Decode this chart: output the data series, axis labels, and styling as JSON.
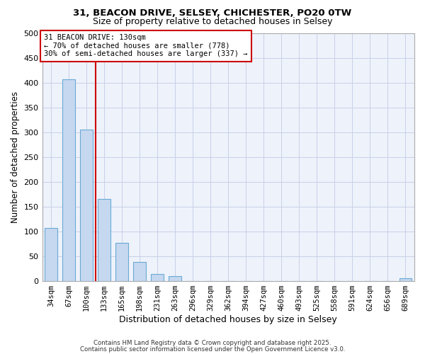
{
  "title1": "31, BEACON DRIVE, SELSEY, CHICHESTER, PO20 0TW",
  "title2": "Size of property relative to detached houses in Selsey",
  "xlabel": "Distribution of detached houses by size in Selsey",
  "ylabel": "Number of detached properties",
  "bar_labels": [
    "34sqm",
    "67sqm",
    "100sqm",
    "133sqm",
    "165sqm",
    "198sqm",
    "231sqm",
    "263sqm",
    "296sqm",
    "329sqm",
    "362sqm",
    "394sqm",
    "427sqm",
    "460sqm",
    "493sqm",
    "525sqm",
    "558sqm",
    "591sqm",
    "624sqm",
    "656sqm",
    "689sqm"
  ],
  "bar_values": [
    107,
    406,
    305,
    165,
    77,
    38,
    13,
    10,
    0,
    0,
    0,
    0,
    0,
    0,
    0,
    0,
    0,
    0,
    0,
    0,
    5
  ],
  "bar_color": "#c5d8f0",
  "bar_edge_color": "#6aaad4",
  "vline_color": "#cc0000",
  "ylim": [
    0,
    500
  ],
  "yticks": [
    0,
    50,
    100,
    150,
    200,
    250,
    300,
    350,
    400,
    450,
    500
  ],
  "annotation_title": "31 BEACON DRIVE: 130sqm",
  "annotation_line1": "← 70% of detached houses are smaller (778)",
  "annotation_line2": "30% of semi-detached houses are larger (337) →",
  "annotation_box_color": "#ffffff",
  "annotation_box_edge": "#cc0000",
  "footer1": "Contains HM Land Registry data © Crown copyright and database right 2025.",
  "footer2": "Contains public sector information licensed under the Open Government Licence v3.0.",
  "bg_color": "#ffffff",
  "plot_bg_color": "#eef2fb",
  "grid_color": "#c8d0e8"
}
